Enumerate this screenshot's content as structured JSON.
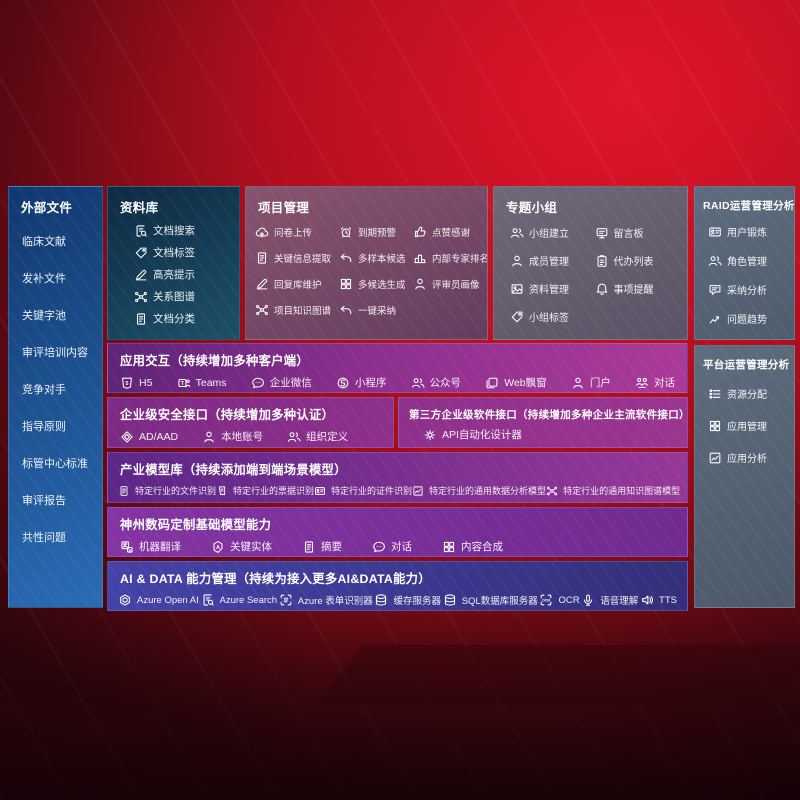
{
  "colors": {
    "background_red": "#b51222",
    "sidebar_blue": "#1d5ca8",
    "panel_navy": "#1c5068",
    "panel_mauve": "#88536f",
    "panel_gray": "#6f6878",
    "panel_slate": "#5d6c7e",
    "panel_purple": "#8c2f8e",
    "panel_magenta": "#9b3590",
    "panel_violet": "#8434a3",
    "panel_indigo": "#4542a8"
  },
  "sidebar": {
    "title": "外部文件",
    "items": [
      "临床文献",
      "发补文件",
      "关键字池",
      "审评培训内容",
      "竞争对手",
      "指导原则",
      "标管中心标准",
      "审评报告",
      "共性问题"
    ]
  },
  "library": {
    "title": "资料库",
    "items": [
      {
        "icon": "doc-search",
        "label": "文档搜索"
      },
      {
        "icon": "tag",
        "label": "文档标签"
      },
      {
        "icon": "pen",
        "label": "高亮提示"
      },
      {
        "icon": "graph",
        "label": "关系图谱"
      },
      {
        "icon": "doc",
        "label": "文档分类"
      }
    ]
  },
  "project": {
    "title": "项目管理",
    "items": [
      {
        "icon": "cloud-upload",
        "label": "问卷上传"
      },
      {
        "icon": "alarm",
        "label": "到期预警"
      },
      {
        "icon": "thumb-up",
        "label": "点赞感谢"
      },
      {
        "icon": "doc",
        "label": "关键信息提取"
      },
      {
        "icon": "reply-arrow",
        "label": "多样本候选"
      },
      {
        "icon": "rank",
        "label": "内部专家排名"
      },
      {
        "icon": "pen",
        "label": "回复库维护"
      },
      {
        "icon": "grid",
        "label": "多候选生成"
      },
      {
        "icon": "person",
        "label": "评审员画像"
      },
      {
        "icon": "graph",
        "label": "项目知识图谱"
      },
      {
        "icon": "reply-arrow",
        "label": "一键采纳"
      }
    ]
  },
  "group": {
    "title": "专题小组",
    "items": [
      {
        "icon": "people",
        "label": "小组建立"
      },
      {
        "icon": "board",
        "label": "留言板"
      },
      {
        "icon": "person",
        "label": "成员管理"
      },
      {
        "icon": "clipboard",
        "label": "代办列表"
      },
      {
        "icon": "photo",
        "label": "资料管理"
      },
      {
        "icon": "bell",
        "label": "事项提醒"
      },
      {
        "icon": "tag",
        "label": "小组标签"
      }
    ]
  },
  "raid": {
    "title": "RAID运营管理分析",
    "items": [
      {
        "icon": "id-card",
        "label": "用户锻炼"
      },
      {
        "icon": "people",
        "label": "角色管理"
      },
      {
        "icon": "chat",
        "label": "采纳分析"
      },
      {
        "icon": "trend",
        "label": "问题趋势"
      }
    ]
  },
  "platform": {
    "title": "平台运营管理分析",
    "items": [
      {
        "icon": "list",
        "label": "资源分配"
      },
      {
        "icon": "grid",
        "label": "应用管理"
      },
      {
        "icon": "chart",
        "label": "应用分析"
      }
    ]
  },
  "interaction": {
    "title": "应用交互（持续增加多种客户端）",
    "items": [
      {
        "icon": "h5",
        "label": "H5"
      },
      {
        "icon": "teams",
        "label": "Teams"
      },
      {
        "icon": "bubble",
        "label": "企业微信"
      },
      {
        "icon": "miniapp",
        "label": "小程序"
      },
      {
        "icon": "people",
        "label": "公众号"
      },
      {
        "icon": "window",
        "label": "Web飘窗"
      },
      {
        "icon": "person",
        "label": "门户"
      },
      {
        "icon": "dialog",
        "label": "对话"
      }
    ]
  },
  "security": {
    "title": "企业级安全接口（持续增加多种认证）",
    "items": [
      {
        "icon": "diamond",
        "label": "AD/AAD"
      },
      {
        "icon": "person",
        "label": "本地账号"
      },
      {
        "icon": "people",
        "label": "组织定义"
      }
    ]
  },
  "thirdparty": {
    "title": "第三方企业级软件接口（持续增加多种企业主流软件接口）",
    "items": [
      {
        "icon": "gear",
        "label": "API自动化设计器"
      }
    ]
  },
  "models": {
    "title": "产业模型库（持续添加端到端场景模型）",
    "items": [
      {
        "icon": "doc",
        "label": "特定行业的文件识别"
      },
      {
        "icon": "receipt",
        "label": "特定行业的票据识别"
      },
      {
        "icon": "id-card",
        "label": "特定行业的证件识别"
      },
      {
        "icon": "chart",
        "label": "特定行业的通用数据分析模型"
      },
      {
        "icon": "graph",
        "label": "特定行业的通用知识图谱模型"
      }
    ]
  },
  "foundation": {
    "title": "神州数码定制基础模型能力",
    "items": [
      {
        "icon": "translate",
        "label": "机器翻译"
      },
      {
        "icon": "entity",
        "label": "关键实体"
      },
      {
        "icon": "doc",
        "label": "摘要"
      },
      {
        "icon": "bubble",
        "label": "对话"
      },
      {
        "icon": "grid",
        "label": "内容合成"
      }
    ]
  },
  "aidata": {
    "title": "AI & DATA 能力管理（持续为接入更多AI&DATA能力）",
    "items": [
      {
        "icon": "openai",
        "label": "Azure Open AI"
      },
      {
        "icon": "doc-search",
        "label": "Azure Search"
      },
      {
        "icon": "form",
        "label": "Azure 表单识别器"
      },
      {
        "icon": "db",
        "label": "缓存服务器"
      },
      {
        "icon": "db",
        "label": "SQL数据库服务器"
      },
      {
        "icon": "ocr",
        "label": "OCR"
      },
      {
        "icon": "mic",
        "label": "语音理解"
      },
      {
        "icon": "speaker",
        "label": "TTS"
      }
    ]
  }
}
